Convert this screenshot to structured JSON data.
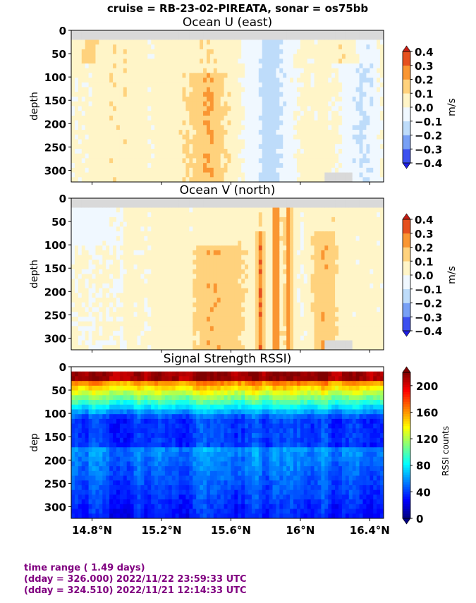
{
  "suptitle": "cruise = RB-23-02-PIREATA,  sonar = os75bb",
  "colors": {
    "accent_text": "#800080",
    "nodata": "#d9d9d9"
  },
  "chart_data": [
    {
      "type": "heatmap",
      "title": "Ocean U (east)",
      "ylabel": "depth",
      "yticks": [
        "0",
        "50",
        "100",
        "150",
        "200",
        "250",
        "300"
      ],
      "ylim": [
        325,
        0
      ],
      "xlim": [
        14.68,
        16.48
      ],
      "xticks": [
        14.8,
        15.2,
        15.6,
        16.0,
        16.4
      ],
      "colorbar": {
        "label": "m/s",
        "ticks": [
          "0.4",
          "0.3",
          "0.2",
          "0.1",
          "0.0",
          "−0.1",
          "−0.2",
          "−0.3",
          "−0.4"
        ],
        "range": [
          -0.4,
          0.4
        ],
        "colors": [
          "#1e1ee6",
          "#3c50f0",
          "#78a0f5",
          "#bedcfa",
          "#f0f8ff",
          "#fff5c8",
          "#ffd27d",
          "#fa9632",
          "#e6501e",
          "#c81e14"
        ]
      }
    },
    {
      "type": "heatmap",
      "title": "Ocean V (north)",
      "ylabel": "depth",
      "yticks": [
        "0",
        "50",
        "100",
        "150",
        "200",
        "250",
        "300"
      ],
      "ylim": [
        325,
        0
      ],
      "xlim": [
        14.68,
        16.48
      ],
      "xticks": [
        14.8,
        15.2,
        15.6,
        16.0,
        16.4
      ],
      "colorbar": {
        "label": "m/s",
        "ticks": [
          "0.4",
          "0.3",
          "0.2",
          "0.1",
          "0.0",
          "−0.1",
          "−0.2",
          "−0.3",
          "−0.4"
        ],
        "range": [
          -0.4,
          0.4
        ],
        "colors": [
          "#1e1ee6",
          "#3c50f0",
          "#78a0f5",
          "#bedcfa",
          "#f0f8ff",
          "#fff5c8",
          "#ffd27d",
          "#fa9632",
          "#e6501e",
          "#c81e14"
        ]
      }
    },
    {
      "type": "heatmap",
      "title": "Signal Strength RSSI)",
      "ylabel": "dep",
      "yticks": [
        "0",
        "50",
        "100",
        "150",
        "200",
        "250",
        "300"
      ],
      "ylim": [
        325,
        0
      ],
      "xlim": [
        14.68,
        16.48
      ],
      "xticks": [
        14.8,
        15.2,
        15.6,
        16.0,
        16.4
      ],
      "xticklabels": [
        "14.8°N",
        "15.2°N",
        "15.6°N",
        "16°N",
        "16.4°N"
      ],
      "colorbar": {
        "label": "RSSI counts",
        "ticks": [
          "200",
          "160",
          "120",
          "80",
          "40",
          "0"
        ],
        "range": [
          0,
          220
        ],
        "colormap": "jet"
      }
    }
  ],
  "footer": {
    "line1": "time range ( 1.49 days)",
    "line2": "(dday = 326.000) 2022/11/22 23:59:33 UTC",
    "line3": "(dday = 324.510) 2022/11/21 12:14:33 UTC"
  }
}
